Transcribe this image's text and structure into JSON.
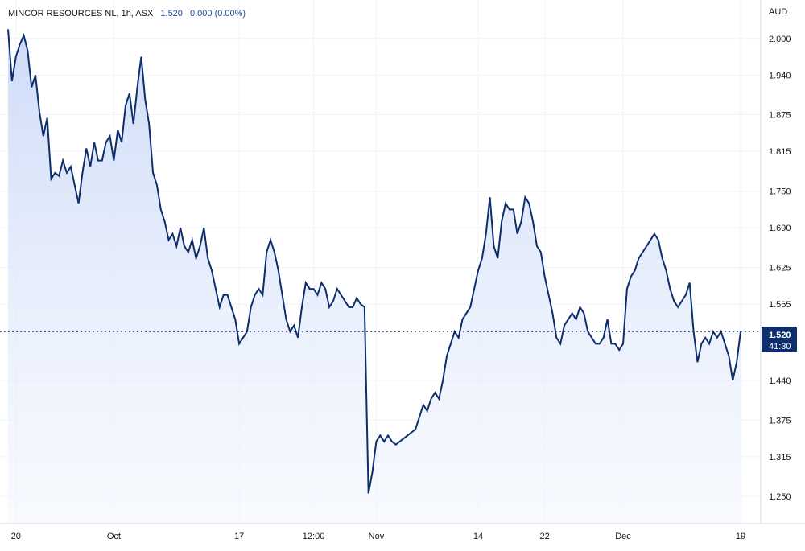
{
  "header": {
    "symbol": "MINCOR RESOURCES NL, 1h, ASX",
    "price": "1.520",
    "change": "0.000 (0.00%)"
  },
  "currency": "AUD",
  "last": {
    "price": "1.520",
    "countdown": "41:30"
  },
  "colors": {
    "line": "#0d2e6b",
    "fill_top": "#c9d8f7",
    "fill_bottom": "#f4f7fe",
    "badge": "#0d2e6b"
  },
  "chart_data": {
    "type": "area",
    "title": "",
    "xlabel": "",
    "ylabel": "",
    "ylim": [
      1.22,
      2.03
    ],
    "y_ticks": [
      "2.000",
      "1.940",
      "1.875",
      "1.815",
      "1.750",
      "1.690",
      "1.625",
      "1.565",
      "1.440",
      "1.375",
      "1.315",
      "1.250"
    ],
    "y_tick_values": [
      2.0,
      1.94,
      1.875,
      1.815,
      1.75,
      1.69,
      1.625,
      1.565,
      1.44,
      1.375,
      1.315,
      1.25
    ],
    "x_ticks": [
      "20",
      "Oct",
      "17",
      "12:00",
      "Nov",
      "14",
      "22",
      "Dec",
      "19"
    ],
    "x_tick_index": [
      2,
      27,
      59,
      78,
      94,
      120,
      137,
      157,
      187
    ],
    "grid": true,
    "series": [
      {
        "values": [
          2.015,
          1.93,
          1.97,
          1.99,
          2.005,
          1.98,
          1.92,
          1.94,
          1.88,
          1.84,
          1.87,
          1.77,
          1.78,
          1.775,
          1.8,
          1.78,
          1.79,
          1.76,
          1.73,
          1.78,
          1.82,
          1.79,
          1.83,
          1.8,
          1.8,
          1.83,
          1.84,
          1.8,
          1.85,
          1.83,
          1.89,
          1.91,
          1.86,
          1.92,
          1.97,
          1.9,
          1.86,
          1.78,
          1.76,
          1.72,
          1.7,
          1.67,
          1.68,
          1.66,
          1.69,
          1.66,
          1.65,
          1.67,
          1.64,
          1.66,
          1.69,
          1.64,
          1.62,
          1.59,
          1.56,
          1.58,
          1.58,
          1.56,
          1.54,
          1.5,
          1.51,
          1.52,
          1.56,
          1.58,
          1.59,
          1.58,
          1.65,
          1.67,
          1.65,
          1.62,
          1.58,
          1.54,
          1.52,
          1.53,
          1.51,
          1.56,
          1.6,
          1.59,
          1.59,
          1.58,
          1.6,
          1.59,
          1.56,
          1.57,
          1.59,
          1.58,
          1.57,
          1.56,
          1.56,
          1.575,
          1.565,
          1.56,
          1.255,
          1.29,
          1.34,
          1.35,
          1.34,
          1.35,
          1.34,
          1.335,
          1.34,
          1.345,
          1.35,
          1.355,
          1.36,
          1.38,
          1.4,
          1.39,
          1.41,
          1.42,
          1.41,
          1.44,
          1.48,
          1.5,
          1.52,
          1.51,
          1.54,
          1.55,
          1.56,
          1.59,
          1.62,
          1.64,
          1.68,
          1.74,
          1.66,
          1.64,
          1.7,
          1.73,
          1.72,
          1.72,
          1.68,
          1.7,
          1.74,
          1.73,
          1.7,
          1.66,
          1.65,
          1.61,
          1.58,
          1.55,
          1.51,
          1.5,
          1.53,
          1.54,
          1.55,
          1.54,
          1.56,
          1.55,
          1.52,
          1.51,
          1.5,
          1.5,
          1.51,
          1.54,
          1.5,
          1.5,
          1.49,
          1.5,
          1.59,
          1.61,
          1.62,
          1.64,
          1.65,
          1.66,
          1.67,
          1.68,
          1.67,
          1.64,
          1.62,
          1.59,
          1.57,
          1.56,
          1.57,
          1.58,
          1.6,
          1.52,
          1.47,
          1.5,
          1.51,
          1.5,
          1.52,
          1.51,
          1.52,
          1.5,
          1.48,
          1.44,
          1.47,
          1.52
        ]
      }
    ]
  }
}
